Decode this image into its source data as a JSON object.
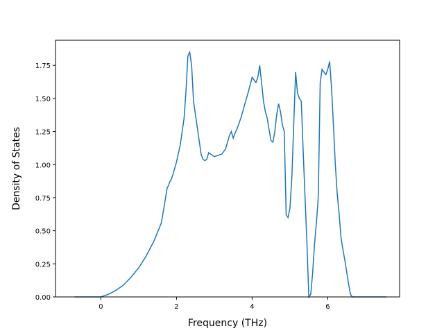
{
  "chart_data": {
    "type": "line",
    "title": "",
    "xlabel": "Frequency (THz)",
    "ylabel": "Density of States",
    "xlim": [
      -1.2,
      7.9
    ],
    "ylim": [
      0.0,
      1.94
    ],
    "xticks": [
      0,
      2,
      4,
      6
    ],
    "yticks": [
      0.0,
      0.25,
      0.5,
      0.75,
      1.0,
      1.25,
      1.5,
      1.75
    ],
    "xtick_labels": [
      "0",
      "2",
      "4",
      "6"
    ],
    "ytick_labels": [
      "0.00",
      "0.25",
      "0.50",
      "0.75",
      "1.00",
      "1.25",
      "1.50",
      "1.75"
    ],
    "grid": false,
    "line_color": "#1f77b4",
    "series": [
      {
        "x": [
          -0.7,
          -0.4,
          -0.2,
          0.0,
          0.2,
          0.4,
          0.6,
          0.8,
          1.0,
          1.2,
          1.4,
          1.6,
          1.7,
          1.75,
          1.8,
          1.82,
          1.85,
          1.9,
          2.0,
          2.1,
          2.2,
          2.25,
          2.3,
          2.35,
          2.4,
          2.45,
          2.5,
          2.55,
          2.6,
          2.65,
          2.7,
          2.75,
          2.8,
          2.85,
          2.9,
          2.95,
          3.0,
          3.1,
          3.2,
          3.3,
          3.4,
          3.45,
          3.5,
          3.55,
          3.6,
          3.65,
          3.7,
          3.8,
          3.9,
          4.0,
          4.1,
          4.15,
          4.2,
          4.25,
          4.3,
          4.35,
          4.4,
          4.45,
          4.5,
          4.55,
          4.6,
          4.65,
          4.7,
          4.75,
          4.8,
          4.85,
          4.9,
          4.95,
          5.0,
          5.05,
          5.1,
          5.15,
          5.2,
          5.25,
          5.3,
          5.35,
          5.4,
          5.45,
          5.5,
          5.55,
          5.6,
          5.65,
          5.7,
          5.75,
          5.8,
          5.85,
          5.9,
          5.95,
          6.0,
          6.05,
          6.1,
          6.15,
          6.2,
          6.25,
          6.3,
          6.35,
          6.4,
          6.45,
          6.5,
          6.55,
          6.6,
          6.65,
          6.7,
          6.75,
          6.8,
          6.85,
          6.9,
          7.0,
          7.2,
          7.55
        ],
        "y": [
          0.0,
          0.0,
          0.0,
          0.0,
          0.02,
          0.05,
          0.09,
          0.15,
          0.22,
          0.31,
          0.42,
          0.56,
          0.73,
          0.82,
          0.85,
          0.87,
          0.88,
          0.92,
          1.02,
          1.15,
          1.35,
          1.55,
          1.82,
          1.85,
          1.75,
          1.48,
          1.38,
          1.28,
          1.18,
          1.08,
          1.04,
          1.03,
          1.04,
          1.09,
          1.08,
          1.07,
          1.06,
          1.07,
          1.08,
          1.12,
          1.22,
          1.25,
          1.2,
          1.24,
          1.27,
          1.31,
          1.35,
          1.45,
          1.55,
          1.66,
          1.62,
          1.66,
          1.75,
          1.62,
          1.48,
          1.4,
          1.35,
          1.26,
          1.18,
          1.17,
          1.25,
          1.38,
          1.46,
          1.4,
          1.3,
          1.25,
          0.62,
          0.6,
          0.67,
          0.9,
          1.3,
          1.7,
          1.54,
          1.5,
          1.48,
          1.1,
          0.75,
          0.4,
          0.0,
          0.02,
          0.18,
          0.4,
          0.56,
          0.76,
          1.62,
          1.72,
          1.7,
          1.68,
          1.72,
          1.78,
          1.58,
          1.3,
          1.0,
          0.78,
          0.63,
          0.45,
          0.36,
          0.28,
          0.19,
          0.1,
          0.02,
          0.0,
          0.0,
          0.0,
          0.0,
          0.0,
          0.0,
          0.0,
          0.0,
          0.0
        ]
      }
    ]
  }
}
